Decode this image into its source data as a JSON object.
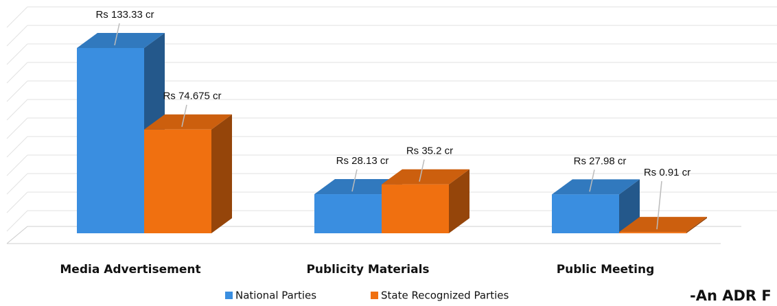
{
  "chart_data": {
    "type": "bar3d",
    "categories": [
      "Media Advertisement",
      "Publicity Materials",
      "Public Meeting"
    ],
    "series": [
      {
        "name": "National Parties",
        "color": "#3a8ee0",
        "values": [
          133.33,
          28.13,
          27.98
        ],
        "value_labels": [
          "Rs 133.33 cr",
          "Rs 28.13 cr",
          "Rs 27.98 cr"
        ]
      },
      {
        "name": "State Recognized Parties",
        "color": "#f07010",
        "values": [
          74.675,
          35.2,
          0.91
        ],
        "value_labels": [
          "Rs 74.675 cr",
          "Rs 35.2 cr",
          "Rs 0.91 cr"
        ]
      }
    ],
    "legend": "bottom",
    "footnote": "-An ADR F"
  }
}
